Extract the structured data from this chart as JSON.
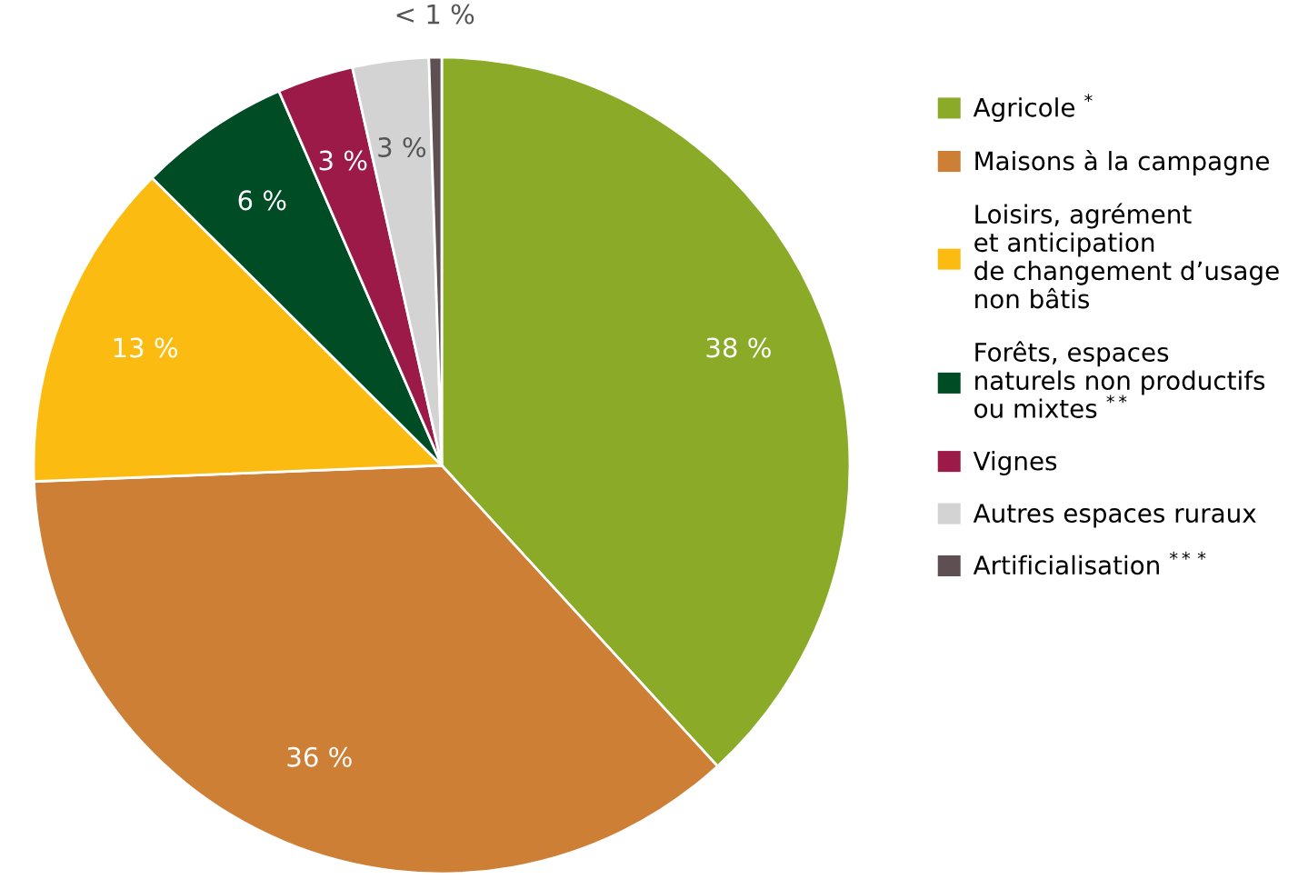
{
  "chart_data": {
    "type": "pie",
    "categories": [
      "Agricole $^{*}$",
      "Maisons à la campagne",
      "Loisirs, agrément\net anticipation\nde changement d’usage\nnon bâtis",
      "Forêts, espaces\nnaturels non productifs\nou mixtes $^{**}$",
      "Vignes",
      "Autres espaces ruraux",
      "Artificialisation $^{***}$"
    ],
    "values": [
      38,
      36,
      13,
      6,
      3,
      3,
      0.5
    ],
    "value_labels": [
      "38 %",
      "36 %",
      "13 %",
      "6 %",
      "3 %",
      "3 %",
      "< 1 %"
    ],
    "colors": [
      "#8aaa28",
      "#cd7f35",
      "#fbbb10",
      "#004d25",
      "#9b1a48",
      "#d3d3d3",
      "#5e5052"
    ],
    "legend": "right"
  }
}
